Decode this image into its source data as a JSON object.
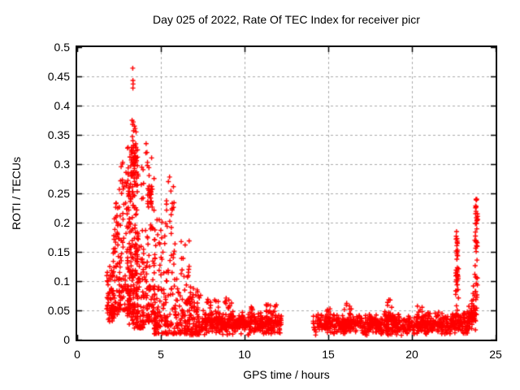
{
  "chart_data": {
    "type": "scatter",
    "title": "Day 025 of 2022, Rate Of TEC Index for receiver picr",
    "xlabel": "GPS time / hours",
    "ylabel": "ROTI / TECUs",
    "xlim": [
      0,
      25
    ],
    "ylim": [
      0,
      0.5
    ],
    "xtick_labels": [
      "0",
      "5",
      "10",
      "15",
      "20",
      "25"
    ],
    "ytick_labels": [
      "0",
      "0.05",
      "0.1",
      "0.15",
      "0.2",
      "0.25",
      "0.3",
      "0.35",
      "0.4",
      "0.45",
      "0.5"
    ],
    "grid": true,
    "legend": false,
    "marker": {
      "shape": "plus",
      "color": "#ff0000",
      "size": 7
    },
    "axis_color": "#000000",
    "grid_color": "#aaaaaa",
    "background": "#ffffff",
    "series_name": "ROTI",
    "notable_points": [
      [
        3.32,
        0.464
      ],
      [
        3.33,
        0.443
      ],
      [
        3.34,
        0.437
      ],
      [
        3.33,
        0.43
      ],
      [
        3.28,
        0.375
      ],
      [
        3.35,
        0.372
      ],
      [
        3.31,
        0.368
      ],
      [
        3.42,
        0.365
      ],
      [
        3.46,
        0.361
      ],
      [
        3.37,
        0.357
      ],
      [
        3.52,
        0.355
      ],
      [
        3.3,
        0.347
      ],
      [
        3.33,
        0.34
      ],
      [
        3.36,
        0.332
      ],
      [
        4.12,
        0.335
      ],
      [
        4.17,
        0.32
      ],
      [
        3.44,
        0.314
      ],
      [
        2.72,
        0.303
      ],
      [
        4.2,
        0.303
      ],
      [
        2.42,
        0.225
      ],
      [
        2.38,
        0.212
      ],
      [
        2.45,
        0.198
      ],
      [
        5.52,
        0.278
      ],
      [
        5.6,
        0.254
      ],
      [
        5.68,
        0.233
      ],
      [
        5.75,
        0.226
      ],
      [
        1.95,
        0.125
      ],
      [
        2.05,
        0.118
      ],
      [
        18.62,
        0.068
      ],
      [
        16.1,
        0.062
      ],
      [
        8.9,
        0.071
      ]
    ],
    "clusters": [
      {
        "x0": 1.75,
        "x1": 2.15,
        "y0": 0.03,
        "y1": 0.115,
        "n": 45,
        "d": "pow",
        "k": 1.2
      },
      {
        "x0": 1.8,
        "x1": 2.3,
        "y0": 0.035,
        "y1": 0.06,
        "n": 25,
        "d": "tri"
      },
      {
        "x0": 2.15,
        "x1": 2.55,
        "y0": 0.04,
        "y1": 0.235,
        "n": 55,
        "d": "pow",
        "k": 1.6
      },
      {
        "x0": 2.5,
        "x1": 3.05,
        "y0": 0.05,
        "y1": 0.31,
        "n": 80,
        "d": "pow",
        "k": 1.8
      },
      {
        "x0": 3.0,
        "x1": 3.65,
        "y0": 0.08,
        "y1": 0.33,
        "n": 150,
        "d": "pow",
        "k": 1.3
      },
      {
        "x0": 3.0,
        "x1": 3.65,
        "y0": 0.015,
        "y1": 0.09,
        "n": 60,
        "d": "tri"
      },
      {
        "x0": 3.2,
        "x1": 3.55,
        "y0": 0.28,
        "y1": 0.335,
        "n": 25,
        "d": "pow",
        "k": 1.0
      },
      {
        "x0": 3.55,
        "x1": 4.05,
        "y0": 0.02,
        "y1": 0.3,
        "n": 70,
        "d": "pow",
        "k": 2.2
      },
      {
        "x0": 4.05,
        "x1": 4.65,
        "y0": 0.03,
        "y1": 0.32,
        "n": 90,
        "d": "pow",
        "k": 2.0
      },
      {
        "x0": 4.2,
        "x1": 4.5,
        "y0": 0.23,
        "y1": 0.265,
        "n": 20,
        "d": "pow",
        "k": 1.0
      },
      {
        "x0": 4.6,
        "x1": 5.3,
        "y0": 0.01,
        "y1": 0.21,
        "n": 90,
        "d": "pow",
        "k": 2.2
      },
      {
        "x0": 5.3,
        "x1": 6.0,
        "y0": 0.01,
        "y1": 0.28,
        "n": 80,
        "d": "pow",
        "k": 2.5
      },
      {
        "x0": 6.0,
        "x1": 6.7,
        "y0": 0.01,
        "y1": 0.17,
        "n": 70,
        "d": "pow",
        "k": 2.2
      },
      {
        "x0": 6.7,
        "x1": 7.4,
        "y0": 0.008,
        "y1": 0.09,
        "n": 80,
        "d": "pow",
        "k": 1.8
      },
      {
        "x0": 7.4,
        "x1": 12.2,
        "y0": 0.006,
        "y1": 0.05,
        "n": 420,
        "d": "tri"
      },
      {
        "x0": 7.7,
        "x1": 8.0,
        "y0": 0.03,
        "y1": 0.075,
        "n": 12,
        "d": "pow",
        "k": 1.0
      },
      {
        "x0": 8.2,
        "x1": 8.45,
        "y0": 0.03,
        "y1": 0.068,
        "n": 10,
        "d": "pow",
        "k": 1.0
      },
      {
        "x0": 8.8,
        "x1": 9.3,
        "y0": 0.03,
        "y1": 0.07,
        "n": 14,
        "d": "pow",
        "k": 1.0
      },
      {
        "x0": 10.2,
        "x1": 10.6,
        "y0": 0.03,
        "y1": 0.057,
        "n": 10,
        "d": "pow",
        "k": 1.0
      },
      {
        "x0": 11.2,
        "x1": 11.9,
        "y0": 0.03,
        "y1": 0.06,
        "n": 14,
        "d": "pow",
        "k": 1.0
      },
      {
        "x0": 14.1,
        "x1": 20.6,
        "y0": 0.005,
        "y1": 0.045,
        "n": 520,
        "d": "tri"
      },
      {
        "x0": 14.9,
        "x1": 15.15,
        "y0": 0.025,
        "y1": 0.056,
        "n": 10,
        "d": "pow",
        "k": 1.0
      },
      {
        "x0": 15.9,
        "x1": 16.4,
        "y0": 0.025,
        "y1": 0.062,
        "n": 14,
        "d": "pow",
        "k": 1.0
      },
      {
        "x0": 18.3,
        "x1": 18.85,
        "y0": 0.03,
        "y1": 0.068,
        "n": 16,
        "d": "pow",
        "k": 1.0
      },
      {
        "x0": 20.3,
        "x1": 20.65,
        "y0": 0.025,
        "y1": 0.058,
        "n": 12,
        "d": "pow",
        "k": 1.0
      },
      {
        "x0": 20.6,
        "x1": 23.35,
        "y0": 0.006,
        "y1": 0.048,
        "n": 240,
        "d": "tri"
      },
      {
        "x0": 22.6,
        "x1": 22.78,
        "y0": 0.04,
        "y1": 0.135,
        "n": 25,
        "d": "pow",
        "k": 1.2
      },
      {
        "x0": 22.62,
        "x1": 22.75,
        "y0": 0.135,
        "y1": 0.185,
        "n": 10,
        "d": "pow",
        "k": 1.0
      },
      {
        "x0": 22.66,
        "x1": 22.74,
        "y0": 0.1,
        "y1": 0.132,
        "n": 8,
        "d": "pow",
        "k": 1.0
      },
      {
        "x0": 22.68,
        "x1": 22.72,
        "y0": 0.14,
        "y1": 0.178,
        "n": 5,
        "d": "pow",
        "k": 1.0
      },
      {
        "x0": 23.3,
        "x1": 23.85,
        "y0": 0.015,
        "y1": 0.06,
        "n": 45,
        "d": "tri"
      },
      {
        "x0": 23.55,
        "x1": 23.75,
        "y0": 0.04,
        "y1": 0.1,
        "n": 15,
        "d": "pow",
        "k": 1.2
      },
      {
        "x0": 23.75,
        "x1": 23.92,
        "y0": 0.05,
        "y1": 0.17,
        "n": 20,
        "d": "pow",
        "k": 1.3
      },
      {
        "x0": 23.78,
        "x1": 23.9,
        "y0": 0.155,
        "y1": 0.2,
        "n": 10,
        "d": "pow",
        "k": 1.0
      },
      {
        "x0": 23.8,
        "x1": 23.92,
        "y0": 0.2,
        "y1": 0.232,
        "n": 12,
        "d": "pow",
        "k": 1.0
      },
      {
        "x0": 23.82,
        "x1": 23.88,
        "y0": 0.232,
        "y1": 0.246,
        "n": 3,
        "d": "pow",
        "k": 1.0
      }
    ]
  }
}
